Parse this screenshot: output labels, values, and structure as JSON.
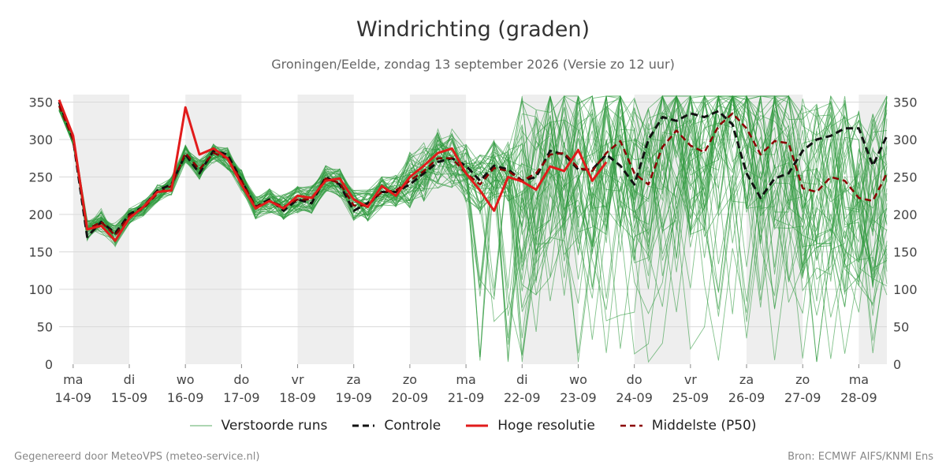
{
  "title": "Windrichting (graden)",
  "subtitle": "Groningen/Eelde, zondag 13 september 2026 (Versie zo 12 uur)",
  "footer": {
    "left": "Gegenereerd door MeteoVPS (meteo-service.nl)",
    "right": "Bron: ECMWF AIFS/KNMI Ens"
  },
  "legend": [
    {
      "key": "ensemble",
      "label": "Verstoorde runs",
      "color": "#2e9a3e",
      "style": "thin"
    },
    {
      "key": "control",
      "label": "Controle",
      "color": "#111111",
      "style": "dashed"
    },
    {
      "key": "hires",
      "label": "Hoge resolutie",
      "color": "#e11b1b",
      "style": "solid"
    },
    {
      "key": "median",
      "label": "Middelste (P50)",
      "color": "#8b0000",
      "style": "dashed"
    }
  ],
  "chart_data": {
    "type": "line",
    "title": "Windrichting (graden)",
    "xlabel": "",
    "ylabel": "",
    "ylim": [
      0,
      360
    ],
    "yticks": [
      0,
      50,
      100,
      150,
      200,
      250,
      300,
      350
    ],
    "x_unit": "days from ma 14-09 00:00",
    "xlim": [
      -0.25,
      14.5
    ],
    "grid": true,
    "legend_position": "bottom",
    "day_ticks": [
      {
        "x": 0,
        "day": "ma",
        "date": "14-09"
      },
      {
        "x": 1,
        "day": "di",
        "date": "15-09"
      },
      {
        "x": 2,
        "day": "wo",
        "date": "16-09"
      },
      {
        "x": 3,
        "day": "do",
        "date": "17-09"
      },
      {
        "x": 4,
        "day": "vr",
        "date": "18-09"
      },
      {
        "x": 5,
        "day": "za",
        "date": "19-09"
      },
      {
        "x": 6,
        "day": "zo",
        "date": "20-09"
      },
      {
        "x": 7,
        "day": "ma",
        "date": "21-09"
      },
      {
        "x": 8,
        "day": "di",
        "date": "22-09"
      },
      {
        "x": 9,
        "day": "wo",
        "date": "23-09"
      },
      {
        "x": 10,
        "day": "do",
        "date": "24-09"
      },
      {
        "x": 11,
        "day": "vr",
        "date": "25-09"
      },
      {
        "x": 12,
        "day": "za",
        "date": "26-09"
      },
      {
        "x": 13,
        "day": "zo",
        "date": "27-09"
      },
      {
        "x": 14,
        "day": "ma",
        "date": "28-09"
      }
    ],
    "shaded_days": [
      [
        0,
        1
      ],
      [
        2,
        3
      ],
      [
        4,
        5
      ],
      [
        6,
        7
      ],
      [
        8,
        9
      ],
      [
        10,
        11
      ],
      [
        12,
        13
      ],
      [
        14,
        14.5
      ]
    ],
    "series": [
      {
        "name": "Controle",
        "x": [
          -0.25,
          0,
          0.25,
          0.5,
          0.75,
          1,
          1.25,
          1.5,
          1.75,
          2,
          2.25,
          2.5,
          2.75,
          3,
          3.25,
          3.5,
          3.75,
          4,
          4.25,
          4.5,
          4.75,
          5,
          5.25,
          5.5,
          5.75,
          6,
          6.25,
          6.5,
          6.75,
          7,
          7.25,
          7.5,
          7.75,
          8,
          8.25,
          8.5,
          8.75,
          9,
          9.25,
          9.5,
          9.75,
          10,
          10.25,
          10.5,
          10.75,
          11,
          11.25,
          11.5,
          11.75,
          12,
          12.25,
          12.5,
          12.75,
          13,
          13.25,
          13.5,
          13.75,
          14,
          14.25,
          14.5
        ],
        "values": [
          350,
          300,
          170,
          190,
          175,
          200,
          210,
          232,
          240,
          280,
          255,
          285,
          280,
          245,
          210,
          220,
          205,
          220,
          215,
          250,
          240,
          205,
          215,
          230,
          230,
          240,
          255,
          270,
          275,
          265,
          245,
          265,
          260,
          245,
          250,
          285,
          280,
          260,
          260,
          280,
          265,
          240,
          300,
          330,
          325,
          335,
          330,
          338,
          320,
          255,
          222,
          248,
          255,
          285,
          300,
          305,
          315,
          315,
          265,
          305
        ]
      },
      {
        "name": "Hoge resolutie",
        "x": [
          -0.25,
          0,
          0.25,
          0.5,
          0.75,
          1,
          1.25,
          1.5,
          1.75,
          2,
          2.25,
          2.5,
          2.75,
          3,
          3.25,
          3.5,
          3.75,
          4,
          4.25,
          4.5,
          4.75,
          5,
          5.25,
          5.5,
          5.75,
          6,
          6.25,
          6.5,
          6.75,
          7,
          7.25,
          7.5,
          7.75,
          8,
          8.25,
          8.5,
          8.75,
          9,
          9.25,
          9.5,
          9.75
        ],
        "values": [
          353,
          305,
          180,
          185,
          165,
          195,
          210,
          230,
          232,
          343,
          280,
          288,
          275,
          240,
          208,
          218,
          208,
          225,
          222,
          245,
          248,
          220,
          210,
          238,
          225,
          250,
          265,
          282,
          288,
          255,
          232,
          205,
          250,
          244,
          233,
          264,
          258,
          286,
          245,
          270,
          null
        ]
      },
      {
        "name": "Middelste (P50)",
        "x": [
          -0.25,
          0,
          0.25,
          0.5,
          0.75,
          1,
          1.25,
          1.5,
          1.75,
          2,
          2.25,
          2.5,
          2.75,
          3,
          3.25,
          3.5,
          3.75,
          4,
          4.25,
          4.5,
          4.75,
          5,
          5.25,
          5.5,
          5.75,
          6,
          6.25,
          6.5,
          6.75,
          7,
          7.25,
          7.5,
          7.75,
          8,
          8.25,
          8.5,
          8.75,
          9,
          9.25,
          9.5,
          9.75,
          10,
          10.25,
          10.5,
          10.75,
          11,
          11.25,
          11.5,
          11.75,
          12,
          12.25,
          12.5,
          12.75,
          13,
          13.25,
          13.5,
          13.75,
          14,
          14.25,
          14.5
        ],
        "values": [
          345,
          300,
          180,
          190,
          172,
          198,
          208,
          228,
          238,
          282,
          260,
          282,
          275,
          245,
          210,
          218,
          210,
          220,
          220,
          248,
          242,
          212,
          212,
          230,
          232,
          245,
          258,
          275,
          275,
          255,
          240,
          262,
          258,
          245,
          255,
          280,
          282,
          262,
          258,
          282,
          298,
          255,
          240,
          290,
          312,
          292,
          283,
          318,
          335,
          315,
          280,
          298,
          295,
          235,
          230,
          250,
          245,
          222,
          218,
          255
        ]
      }
    ]
  }
}
